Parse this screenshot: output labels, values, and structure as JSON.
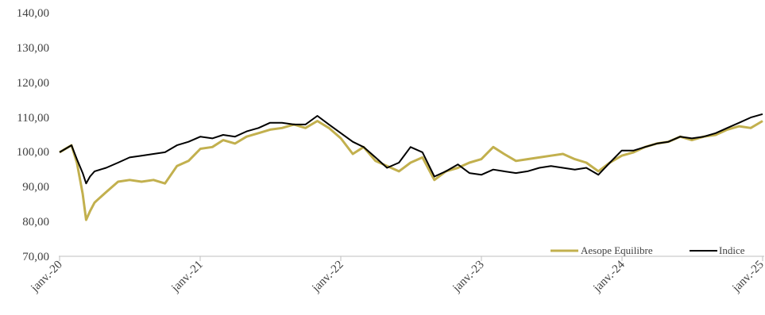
{
  "chart_data": {
    "type": "line",
    "x_ticks": [
      "janv.-20",
      "janv.-21",
      "janv.-22",
      "janv.-23",
      "janv.-24",
      "janv.-25"
    ],
    "ylim": [
      70,
      140
    ],
    "y_ticks": [
      "70,00",
      "80,00",
      "90,00",
      "100,00",
      "110,00",
      "120,00",
      "130,00",
      "140,00"
    ],
    "grid": false,
    "legend_position": "bottom-right",
    "series": [
      {
        "name": "Aesope Equilibre",
        "color": "#c2b04e",
        "x": [
          "2020-01",
          "2020-02",
          "2020-02-15",
          "2020-03",
          "2020-03-10",
          "2020-03-20",
          "2020-04",
          "2020-05",
          "2020-06",
          "2020-07",
          "2020-08",
          "2020-09",
          "2020-10",
          "2020-11",
          "2020-12",
          "2021-01",
          "2021-02",
          "2021-03",
          "2021-04",
          "2021-05",
          "2021-06",
          "2021-07",
          "2021-08",
          "2021-09",
          "2021-10",
          "2021-11",
          "2021-12",
          "2022-01",
          "2022-02",
          "2022-03",
          "2022-04",
          "2022-05",
          "2022-06",
          "2022-07",
          "2022-08",
          "2022-09",
          "2022-10",
          "2022-11",
          "2022-12",
          "2023-01",
          "2023-02",
          "2023-03",
          "2023-04",
          "2023-05",
          "2023-06",
          "2023-07",
          "2023-08",
          "2023-09",
          "2023-10",
          "2023-11",
          "2023-12",
          "2024-01",
          "2024-02",
          "2024-03",
          "2024-04",
          "2024-05",
          "2024-06",
          "2024-07",
          "2024-08",
          "2024-09",
          "2024-10",
          "2024-11",
          "2024-12",
          "2025-01"
        ],
        "values": [
          100,
          102,
          97,
          88,
          80.5,
          83,
          85.5,
          88.5,
          91.5,
          92,
          91.5,
          92,
          91,
          96,
          97.5,
          101,
          101.5,
          103.5,
          102.5,
          104.5,
          105.5,
          106.5,
          107,
          108,
          107,
          109,
          107,
          104,
          99.5,
          101.5,
          97.5,
          96,
          94.5,
          97,
          98.5,
          92,
          94.5,
          95.5,
          97,
          98,
          101.5,
          99.5,
          97.5,
          98,
          98.5,
          99,
          99.5,
          98,
          97,
          94.5,
          97,
          99,
          100,
          101.5,
          102.5,
          103,
          104.5,
          103.5,
          104.5,
          105,
          106.5,
          107.5,
          107,
          109
        ]
      },
      {
        "name": "Indice",
        "color": "#000000",
        "x": [
          "2020-01",
          "2020-02",
          "2020-02-15",
          "2020-03",
          "2020-03-10",
          "2020-03-20",
          "2020-04",
          "2020-05",
          "2020-06",
          "2020-07",
          "2020-08",
          "2020-09",
          "2020-10",
          "2020-11",
          "2020-12",
          "2021-01",
          "2021-02",
          "2021-03",
          "2021-04",
          "2021-05",
          "2021-06",
          "2021-07",
          "2021-08",
          "2021-09",
          "2021-10",
          "2021-11",
          "2021-12",
          "2022-01",
          "2022-02",
          "2022-03",
          "2022-04",
          "2022-05",
          "2022-06",
          "2022-07",
          "2022-08",
          "2022-09",
          "2022-10",
          "2022-11",
          "2022-12",
          "2023-01",
          "2023-02",
          "2023-03",
          "2023-04",
          "2023-05",
          "2023-06",
          "2023-07",
          "2023-08",
          "2023-09",
          "2023-10",
          "2023-11",
          "2023-12",
          "2024-01",
          "2024-02",
          "2024-03",
          "2024-04",
          "2024-05",
          "2024-06",
          "2024-07",
          "2024-08",
          "2024-09",
          "2024-10",
          "2024-11",
          "2024-12",
          "2025-01"
        ],
        "values": [
          100,
          102,
          98,
          94,
          91,
          93,
          94.5,
          95.5,
          97,
          98.5,
          99,
          99.5,
          100,
          102,
          103,
          104.5,
          104,
          105,
          104.5,
          106,
          107,
          108.5,
          108.5,
          108,
          108,
          110.5,
          108,
          105.5,
          103,
          101.5,
          98.5,
          95.5,
          97,
          101.5,
          100,
          93,
          94.5,
          96.5,
          94,
          93.5,
          95,
          94.5,
          94,
          94.5,
          95.5,
          96,
          95.5,
          95,
          95.5,
          93.5,
          97,
          100.5,
          100.5,
          101.5,
          102.5,
          103,
          104.5,
          104,
          104.5,
          105.5,
          107,
          108.5,
          110,
          111
        ]
      }
    ]
  }
}
